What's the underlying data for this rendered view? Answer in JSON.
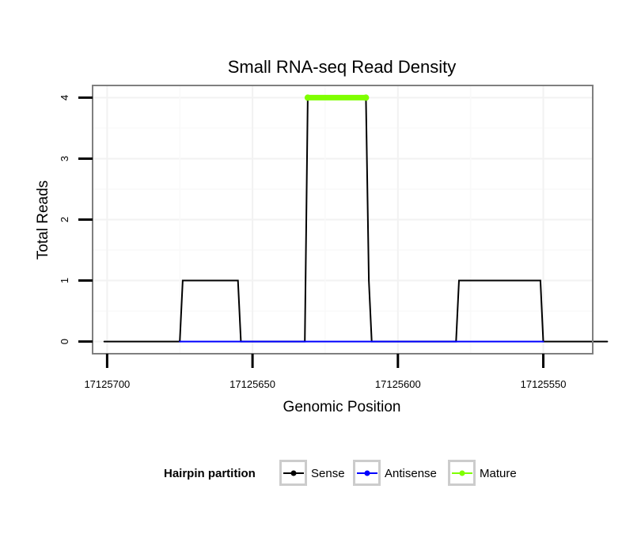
{
  "chart_data": {
    "type": "line",
    "title": "Small RNA-seq Read Density",
    "xlabel": "Genomic Position",
    "ylabel": "Total Reads",
    "x_reversed": true,
    "xlim": [
      17125705,
      17125533
    ],
    "ylim": [
      -0.2,
      4.2
    ],
    "x_ticks": [
      17125700,
      17125650,
      17125600,
      17125550
    ],
    "x_tick_labels": [
      "17125700",
      "17125650",
      "17125600",
      "17125550"
    ],
    "y_ticks": [
      0,
      1,
      2,
      3,
      4
    ],
    "y_tick_labels": [
      "0",
      "1",
      "2",
      "3",
      "4"
    ],
    "grid": true,
    "legend": {
      "title": "Hairpin partition",
      "position": "bottom",
      "entries": [
        "Sense",
        "Antisense",
        "Mature"
      ]
    },
    "series": [
      {
        "name": "Sense",
        "color": "#000000",
        "x": [
          17125701,
          17125675,
          17125674,
          17125655,
          17125654,
          17125632,
          17125631,
          17125611,
          17125610,
          17125609,
          17125580,
          17125579,
          17125551,
          17125550,
          17125528
        ],
        "y": [
          0,
          0,
          1,
          1,
          0,
          0,
          4,
          4,
          1,
          0,
          0,
          1,
          1,
          0,
          0
        ]
      },
      {
        "name": "Antisense",
        "color": "#0000ff",
        "x": [
          17125675,
          17125654,
          17125632,
          17125609,
          17125580,
          17125550
        ],
        "y": [
          0,
          0,
          0,
          0,
          0,
          0
        ]
      },
      {
        "name": "Mature",
        "color": "#7fff00",
        "x": [
          17125631,
          17125611
        ],
        "y": [
          4,
          4
        ]
      }
    ]
  }
}
